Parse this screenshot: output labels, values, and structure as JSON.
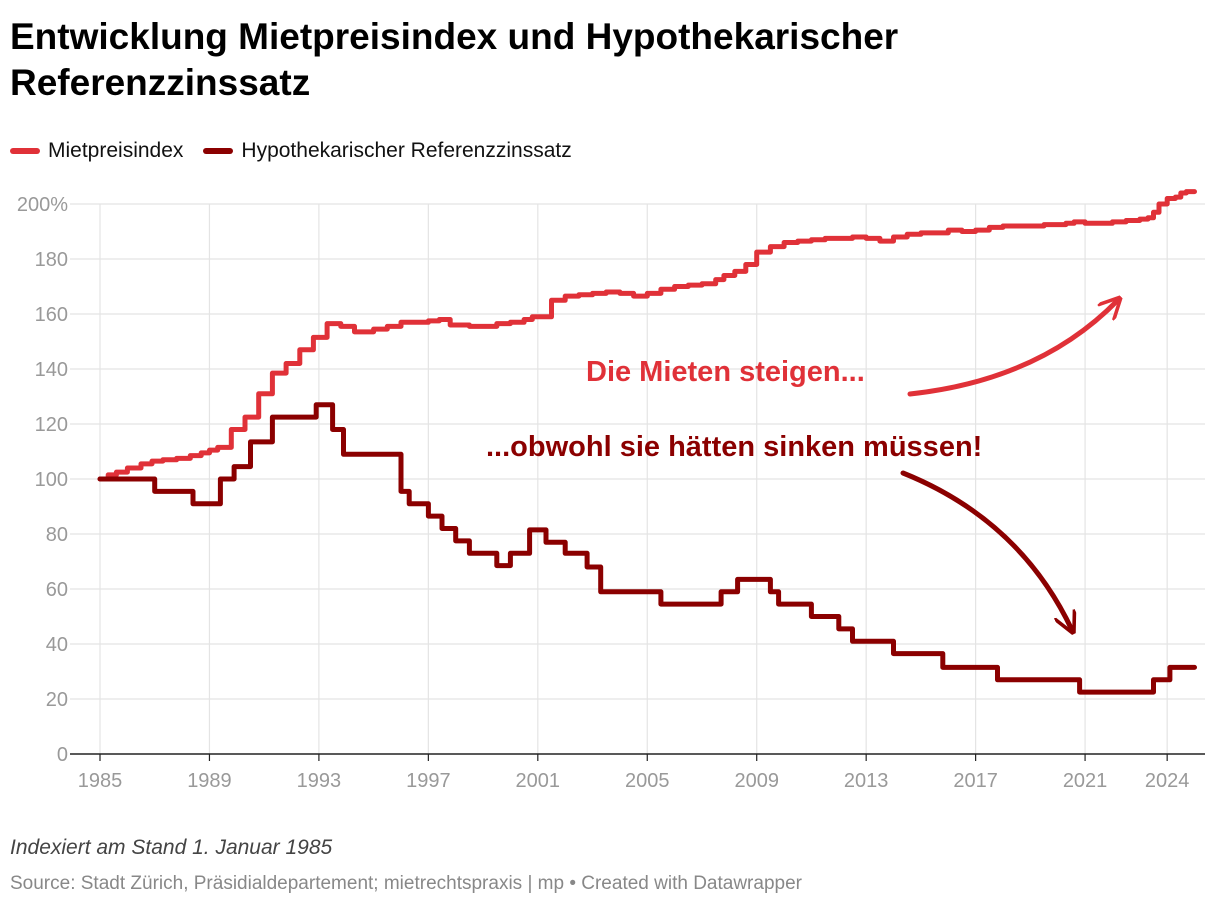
{
  "title": "Entwicklung Mietpreisindex und Hypothekarischer Referenzzinssatz",
  "note": "Indexiert am Stand 1. Januar 1985",
  "source": "Source: Stadt Zürich, Präsidialdepartement; mietrechtspraxis | mp • Created with Datawrapper",
  "colors": {
    "mietpreisindex": "#e03138",
    "referenzzinssatz": "#8b0000",
    "grid": "#e4e4e4",
    "axis": "#222222"
  },
  "chart_data": {
    "type": "line",
    "title": "Entwicklung Mietpreisindex und Hypothekarischer Referenzzinssatz",
    "xlabel": "",
    "ylabel": "",
    "xlim": [
      1985,
      2025.2
    ],
    "ylim": [
      0,
      200
    ],
    "grid": true,
    "legend_position": "top-left",
    "x_ticks": [
      1985,
      1989,
      1993,
      1997,
      2001,
      2005,
      2009,
      2013,
      2017,
      2021,
      2024
    ],
    "y_ticks": [
      0,
      20,
      40,
      60,
      80,
      100,
      120,
      140,
      160,
      180,
      200
    ],
    "y_tick_labels": [
      "0",
      "20",
      "40",
      "60",
      "80",
      "100",
      "120",
      "140",
      "160",
      "180",
      "200%"
    ],
    "series": [
      {
        "name": "Mietpreisindex",
        "step": true,
        "x": [
          1985,
          1985.3,
          1985.6,
          1986,
          1986.5,
          1986.9,
          1987.3,
          1987.8,
          1988.3,
          1988.7,
          1989,
          1989.3,
          1989.8,
          1990.3,
          1990.8,
          1991.3,
          1991.8,
          1992.3,
          1992.8,
          1993.3,
          1993.8,
          1994.3,
          1995,
          1995.5,
          1996,
          1996.5,
          1997,
          1997.4,
          1997.8,
          1998.5,
          1999,
          1999.5,
          2000,
          2000.5,
          2000.8,
          2001.5,
          2002,
          2002.5,
          2003,
          2003.5,
          2004,
          2004.5,
          2005,
          2005.5,
          2006,
          2006.5,
          2007,
          2007.5,
          2007.8,
          2008.2,
          2008.6,
          2009,
          2009.5,
          2010,
          2010.5,
          2011,
          2011.5,
          2012,
          2012.5,
          2013,
          2013.5,
          2014,
          2014.5,
          2015,
          2015.5,
          2016,
          2016.5,
          2017,
          2017.5,
          2018,
          2018.5,
          2019,
          2019.5,
          2020,
          2020.3,
          2020.6,
          2021,
          2021.5,
          2022,
          2022.5,
          2023,
          2023.3,
          2023.5,
          2023.7,
          2024,
          2024.3,
          2024.5,
          2024.7,
          2025
        ],
        "values": [
          100,
          101.5,
          102.5,
          104,
          105.5,
          106.5,
          107,
          107.5,
          108.5,
          109.5,
          110.5,
          111.5,
          118,
          122.5,
          131,
          138.5,
          142,
          147,
          151.5,
          156.5,
          155.5,
          153.5,
          154.5,
          155.5,
          157,
          157,
          157.5,
          158,
          156,
          155.5,
          155.5,
          156.5,
          157,
          158,
          159,
          165,
          166.5,
          167,
          167.5,
          168,
          167.5,
          166.5,
          167.5,
          169,
          170,
          170.5,
          171,
          172.5,
          174,
          175.5,
          178,
          182.5,
          184.5,
          186,
          186.5,
          187,
          187.5,
          187.5,
          188,
          187.5,
          186.5,
          188,
          189,
          189.5,
          189.5,
          190.5,
          190,
          190.5,
          191.5,
          192,
          192,
          192,
          192.5,
          192.5,
          193,
          193.5,
          193,
          193,
          193.5,
          194,
          194.5,
          195,
          197,
          200,
          202,
          202.5,
          204,
          204.5,
          204.5
        ]
      },
      {
        "name": "Hypothekarischer Referenzzinssatz",
        "step": true,
        "x": [
          1985,
          1987,
          1988.4,
          1989.4,
          1989.9,
          1990.5,
          1991.3,
          1992.9,
          1993.5,
          1993.9,
          1996,
          1996.3,
          1997,
          1997.5,
          1998,
          1998.5,
          1999.5,
          2000,
          2000.7,
          2001.3,
          2002,
          2002.8,
          2003.3,
          2005.5,
          2007.7,
          2008.3,
          2009.5,
          2009.8,
          2011,
          2012,
          2012.5,
          2014,
          2015.8,
          2017.8,
          2020.8,
          2023.5,
          2024.1,
          2025
        ],
        "values": [
          100,
          95.5,
          91,
          100,
          104.5,
          113.5,
          122.5,
          127,
          118,
          109,
          95.5,
          91,
          86.5,
          82,
          77.5,
          73,
          68.5,
          73,
          81.5,
          77,
          73,
          68,
          59,
          54.5,
          59,
          63.5,
          59,
          54.5,
          50,
          45.5,
          41,
          36.5,
          31.5,
          27,
          22.5,
          27,
          31.5,
          31.5
        ]
      }
    ],
    "annotations": [
      {
        "text": "Die Mieten steigen...",
        "series": "Mietpreisindex"
      },
      {
        "text": "...obwohl sie hätten sinken müssen!",
        "series": "Hypothekarischer Referenzzinssatz"
      }
    ]
  }
}
